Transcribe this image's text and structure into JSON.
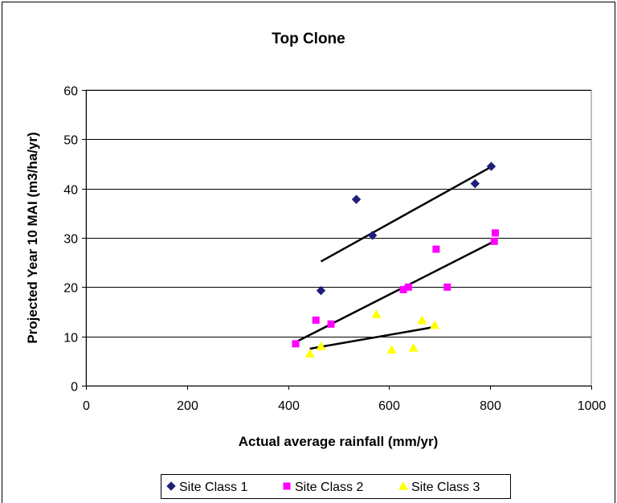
{
  "chart_data": {
    "type": "scatter",
    "title": "Top Clone",
    "xlabel": "Actual average rainfall (mm/yr)",
    "ylabel": "Projected Year 10  MAI (m3/ha/yr)",
    "xlim": [
      0,
      1000
    ],
    "ylim": [
      0,
      60
    ],
    "x_ticks": [
      0,
      200,
      400,
      600,
      800,
      1000
    ],
    "y_ticks": [
      0,
      10,
      20,
      30,
      40,
      50,
      60
    ],
    "grid": "horizontal",
    "legend_position": "bottom",
    "series": [
      {
        "name": "Site Class 1",
        "marker": "diamond",
        "color": "#1f1f7a",
        "points": [
          [
            465,
            19.3
          ],
          [
            535,
            37.8
          ],
          [
            567,
            30.5
          ],
          [
            770,
            41
          ],
          [
            802,
            44.5
          ]
        ],
        "trendline": [
          [
            465,
            25.2
          ],
          [
            800,
            44.3
          ]
        ]
      },
      {
        "name": "Site Class 2",
        "marker": "square",
        "color": "#ff00ff",
        "points": [
          [
            415,
            8.5
          ],
          [
            455,
            13.3
          ],
          [
            485,
            12.5
          ],
          [
            628,
            19.5
          ],
          [
            638,
            20
          ],
          [
            693,
            27.7
          ],
          [
            715,
            20
          ],
          [
            808,
            29.3
          ],
          [
            810,
            31
          ]
        ],
        "trendline": [
          [
            418,
            9
          ],
          [
            808,
            29.3
          ]
        ]
      },
      {
        "name": "Site Class 3",
        "marker": "triangle",
        "color": "#ffff00",
        "points": [
          [
            443,
            6.5
          ],
          [
            465,
            8
          ],
          [
            575,
            14.5
          ],
          [
            605,
            7.3
          ],
          [
            648,
            7.7
          ],
          [
            665,
            13.3
          ],
          [
            690,
            12.3
          ]
        ],
        "trendline": [
          [
            443,
            7.5
          ],
          [
            695,
            12
          ]
        ]
      }
    ]
  }
}
